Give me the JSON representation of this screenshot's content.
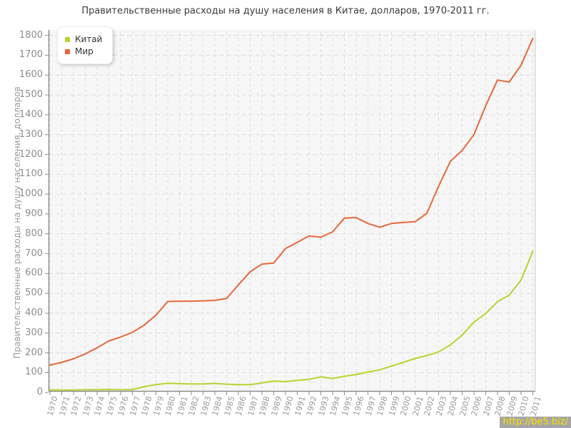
{
  "title": "Правительственные расходы на душу населения в Китае, долларов, 1970-2011 гг.",
  "watermark": {
    "text": "http://be5.biz/"
  },
  "colors": {
    "china": "#b9d231",
    "world": "#e4683c",
    "grid": "#dcdcdc",
    "axis": "#8c8c8c",
    "plot_bg": "#f6f6f6"
  },
  "chart_data": {
    "type": "line",
    "title": "Правительственные расходы на душу населения в Китае, долларов, 1970-2011 гг.",
    "xlabel": "",
    "ylabel": "Правительственные расходы на душу населения, долларов",
    "ylim": [
      0,
      1800
    ],
    "ytick_interval": 100,
    "grid": true,
    "legend_position": "top-left",
    "x": [
      1970,
      1971,
      1972,
      1973,
      1974,
      1975,
      1976,
      1977,
      1978,
      1979,
      1980,
      1981,
      1982,
      1983,
      1984,
      1985,
      1986,
      1987,
      1988,
      1989,
      1990,
      1991,
      1992,
      1993,
      1994,
      1995,
      1996,
      1997,
      1998,
      1999,
      2000,
      2001,
      2002,
      2003,
      2004,
      2005,
      2006,
      2007,
      2008,
      2009,
      2010,
      2011
    ],
    "series": [
      {
        "name": "Китай",
        "color": "#b9d231",
        "values": [
          13,
          13,
          13,
          14,
          14,
          15,
          14,
          15,
          30,
          40,
          47,
          45,
          43,
          43,
          46,
          42,
          40,
          40,
          49,
          58,
          55,
          61,
          67,
          79,
          71,
          82,
          91,
          103,
          115,
          133,
          152,
          172,
          186,
          205,
          240,
          290,
          355,
          398,
          458,
          491,
          567,
          712
        ]
      },
      {
        "name": "Мир",
        "color": "#e4683c",
        "values": [
          138,
          152,
          170,
          195,
          225,
          260,
          280,
          303,
          340,
          390,
          459,
          460,
          460,
          462,
          465,
          474,
          543,
          609,
          647,
          653,
          726,
          757,
          789,
          783,
          810,
          879,
          882,
          852,
          833,
          852,
          857,
          861,
          903,
          1040,
          1165,
          1220,
          1300,
          1445,
          1575,
          1565,
          1650,
          1785
        ]
      }
    ]
  }
}
